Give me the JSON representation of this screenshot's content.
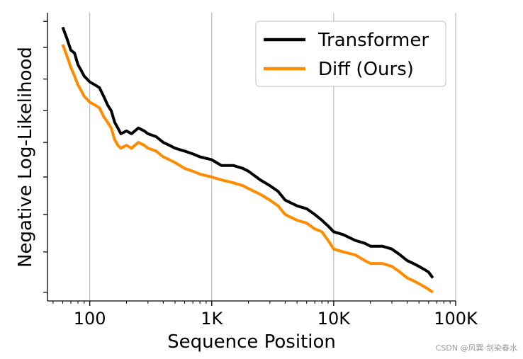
{
  "chart_data": {
    "type": "line",
    "title": "",
    "xlabel": "Sequence Position",
    "ylabel": "Negative Log-Likelihood",
    "x_scale": "log",
    "xlim": [
      45,
      100000
    ],
    "ylim": [
      0.0,
      1.0
    ],
    "x_ticks": [
      {
        "value": 100,
        "label": "100"
      },
      {
        "value": 1000,
        "label": "1K"
      },
      {
        "value": 10000,
        "label": "10K"
      },
      {
        "value": 100000,
        "label": "100K"
      }
    ],
    "y_tick_values": [
      0.03,
      0.17,
      0.3,
      0.43,
      0.55,
      0.66,
      0.77,
      0.88,
      0.97
    ],
    "show_y_tick_labels": false,
    "grid": "vertical",
    "legend_position": "top-right",
    "series": [
      {
        "name": "Transformer",
        "color": "#000000",
        "x": [
          60,
          65,
          70,
          75,
          80,
          85,
          90,
          100,
          110,
          120,
          130,
          140,
          150,
          160,
          170,
          180,
          200,
          220,
          250,
          280,
          300,
          350,
          400,
          450,
          500,
          600,
          700,
          800,
          1000,
          1200,
          1500,
          1800,
          2000,
          2500,
          3000,
          3500,
          4000,
          5000,
          6000,
          7000,
          8000,
          9000,
          10000,
          12000,
          15000,
          18000,
          20000,
          25000,
          30000,
          35000,
          40000,
          45000,
          50000,
          55000,
          60000,
          65000
        ],
        "y": [
          0.95,
          0.91,
          0.87,
          0.86,
          0.82,
          0.8,
          0.78,
          0.76,
          0.75,
          0.74,
          0.71,
          0.68,
          0.66,
          0.62,
          0.6,
          0.58,
          0.59,
          0.58,
          0.6,
          0.59,
          0.58,
          0.57,
          0.55,
          0.54,
          0.53,
          0.52,
          0.51,
          0.5,
          0.49,
          0.47,
          0.47,
          0.46,
          0.45,
          0.42,
          0.4,
          0.38,
          0.35,
          0.33,
          0.32,
          0.3,
          0.28,
          0.26,
          0.24,
          0.23,
          0.21,
          0.2,
          0.19,
          0.19,
          0.18,
          0.16,
          0.14,
          0.13,
          0.12,
          0.11,
          0.1,
          0.08
        ]
      },
      {
        "name": "Diff (Ours)",
        "color": "#ff8c00",
        "x": [
          60,
          65,
          70,
          75,
          80,
          85,
          90,
          100,
          110,
          120,
          130,
          140,
          150,
          160,
          170,
          180,
          200,
          220,
          250,
          280,
          300,
          350,
          400,
          450,
          500,
          600,
          700,
          800,
          1000,
          1200,
          1500,
          1800,
          2000,
          2500,
          3000,
          3500,
          4000,
          5000,
          6000,
          7000,
          8000,
          9000,
          10000,
          12000,
          15000,
          18000,
          20000,
          25000,
          30000,
          35000,
          40000,
          45000,
          50000,
          55000,
          60000,
          65000
        ],
        "y": [
          0.89,
          0.85,
          0.81,
          0.78,
          0.75,
          0.73,
          0.71,
          0.69,
          0.68,
          0.67,
          0.64,
          0.62,
          0.6,
          0.56,
          0.54,
          0.53,
          0.54,
          0.53,
          0.55,
          0.54,
          0.53,
          0.52,
          0.5,
          0.49,
          0.48,
          0.46,
          0.45,
          0.44,
          0.43,
          0.42,
          0.41,
          0.4,
          0.39,
          0.37,
          0.35,
          0.33,
          0.3,
          0.28,
          0.27,
          0.25,
          0.24,
          0.21,
          0.18,
          0.17,
          0.16,
          0.14,
          0.13,
          0.13,
          0.12,
          0.1,
          0.08,
          0.07,
          0.06,
          0.05,
          0.04,
          0.03
        ]
      }
    ]
  },
  "watermark": "CSDN @风巽·剑染春水"
}
